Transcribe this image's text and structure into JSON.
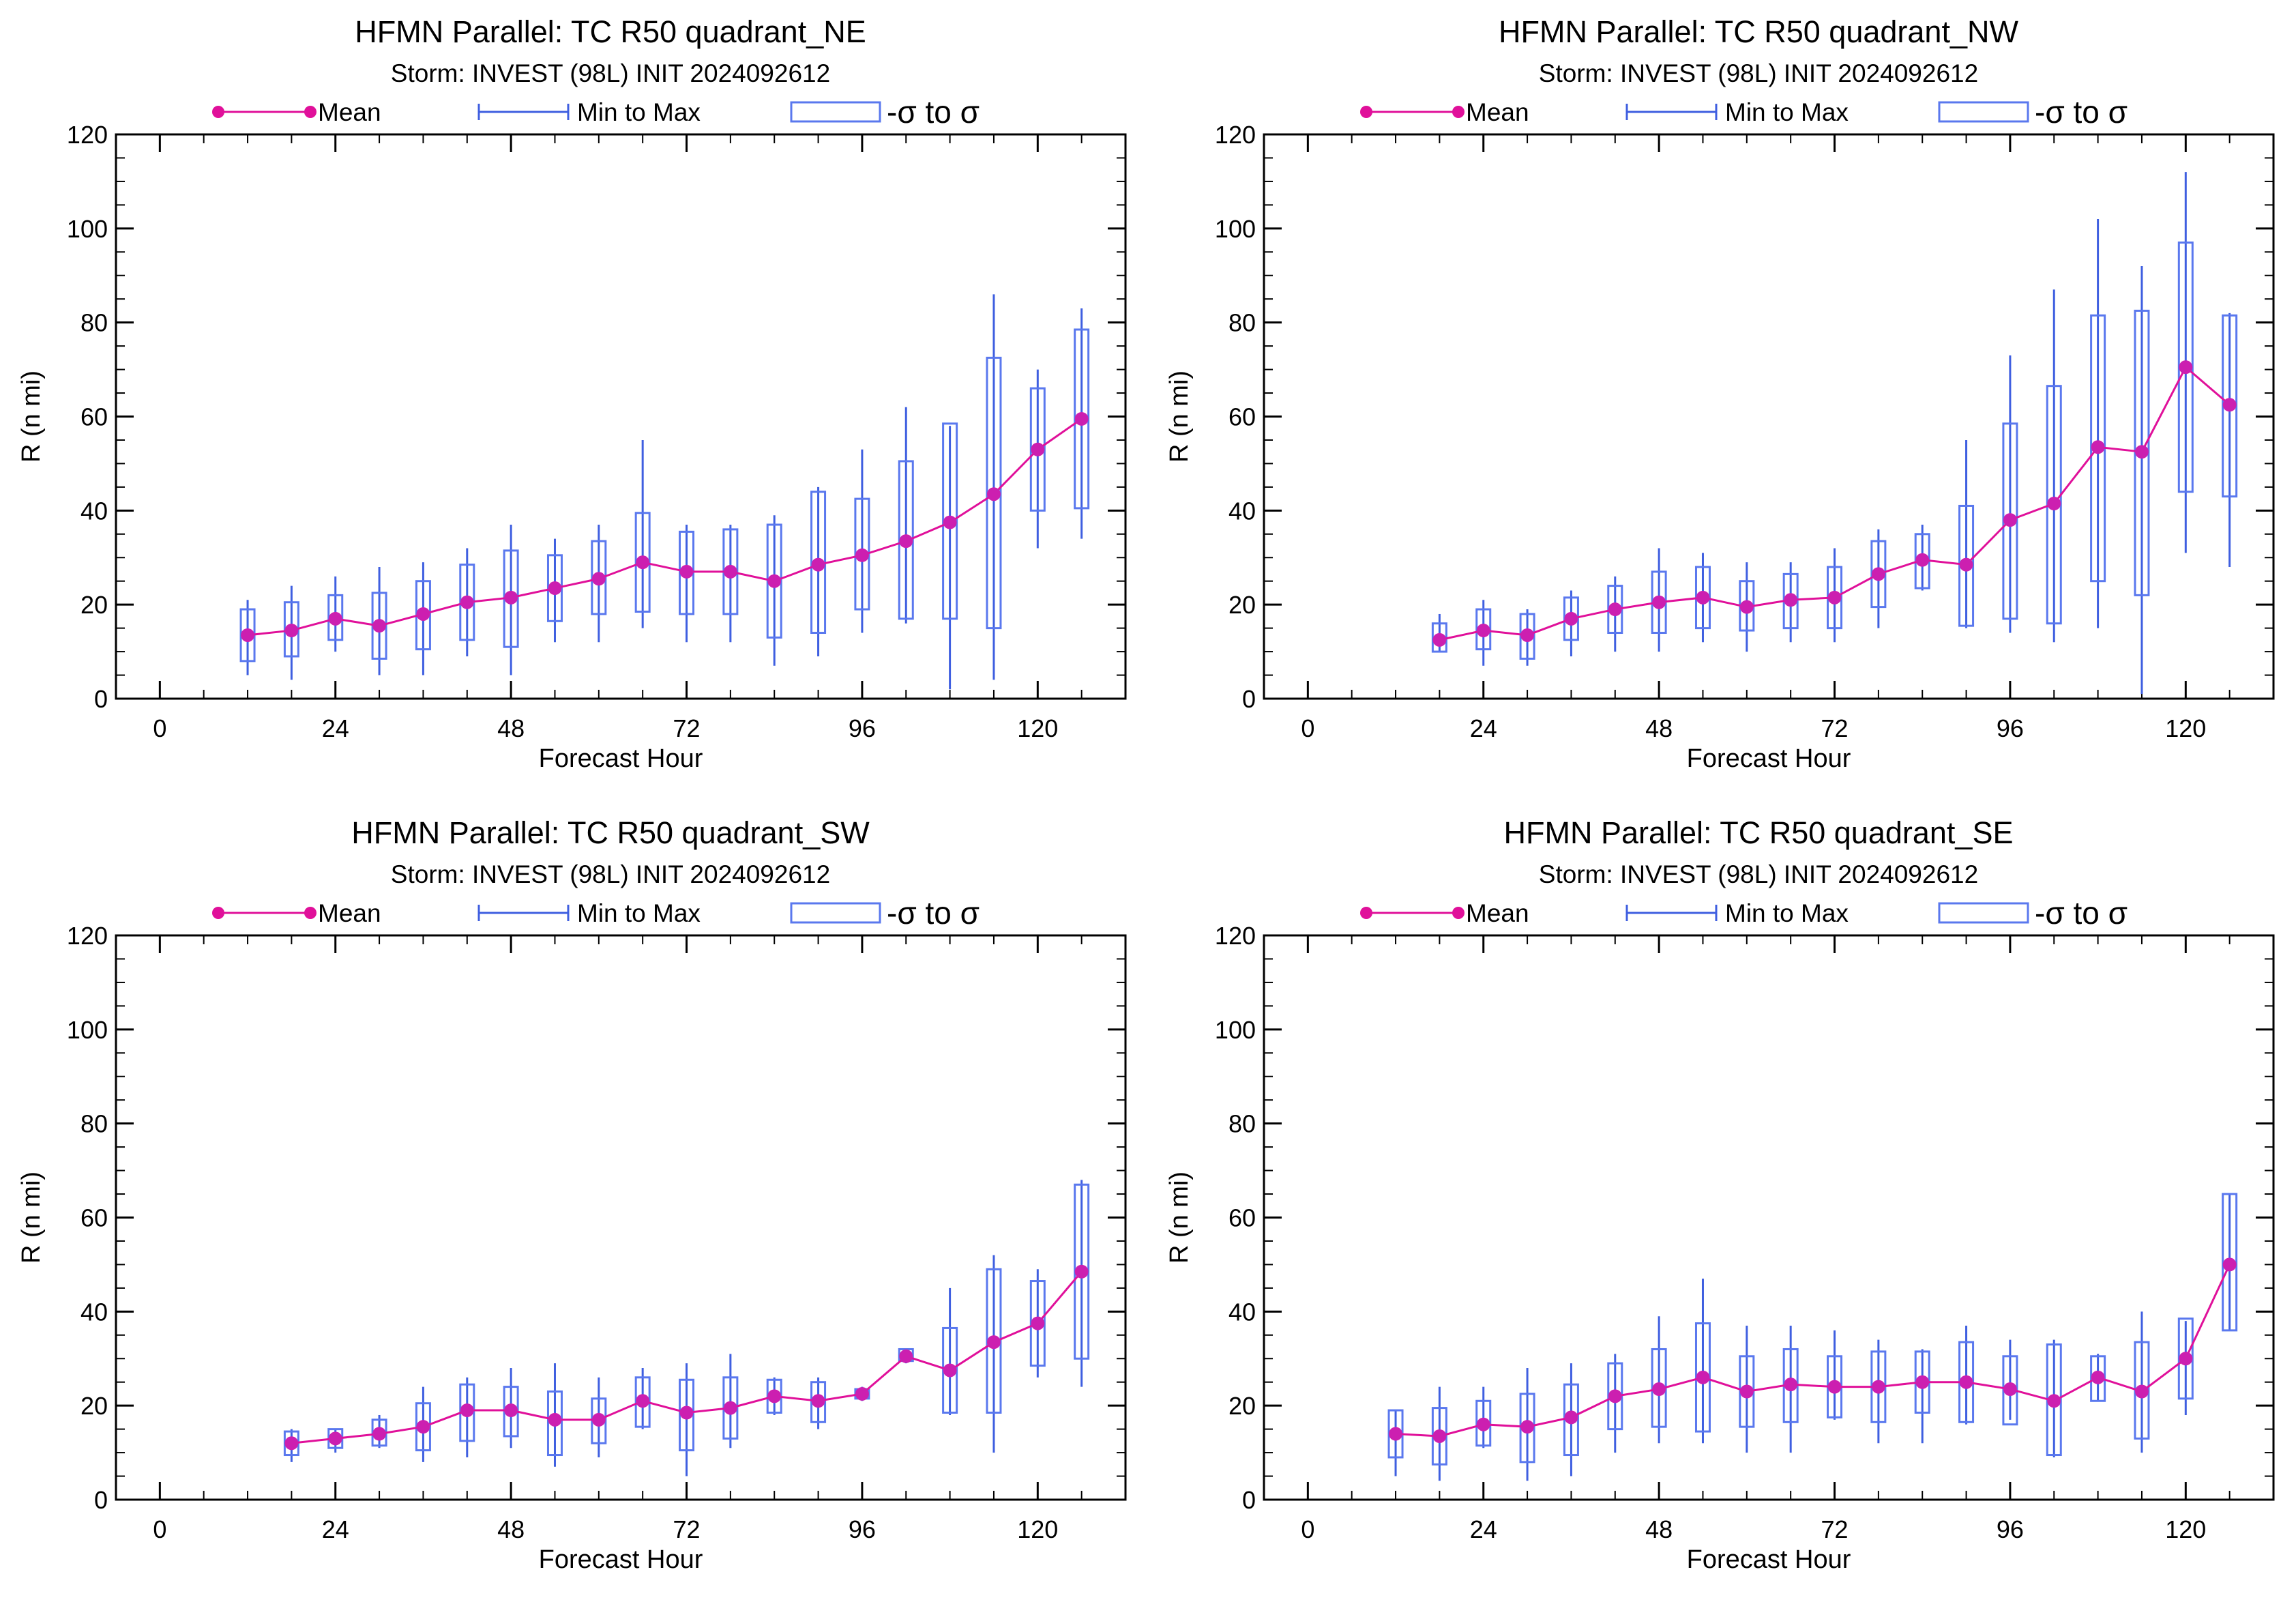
{
  "colors": {
    "mean": "#e0109a",
    "mean_marker": "#cc1fb0",
    "range": "#3f5fe0",
    "box": "#5a78ee",
    "axis": "#000000"
  },
  "legend": {
    "mean": "Mean",
    "range": "Min to Max",
    "sigma": "-σ to σ"
  },
  "chart_data": [
    {
      "type": "box",
      "title": "HFMN Parallel: TC  R50 quadrant_NE",
      "subtitle": "Storm: INVEST (98L) INIT 2024092612",
      "xlabel": "Forecast Hour",
      "ylabel": "R (n mi)",
      "xlim": [
        -6,
        132
      ],
      "ylim": [
        0,
        120
      ],
      "xticks": [
        0,
        24,
        48,
        72,
        96,
        120
      ],
      "yticks": [
        0,
        20,
        40,
        60,
        80,
        100,
        120
      ],
      "x": [
        12,
        18,
        24,
        30,
        36,
        42,
        48,
        54,
        60,
        66,
        72,
        78,
        84,
        90,
        96,
        102,
        108,
        114,
        120,
        126
      ],
      "mean": [
        13.5,
        14.5,
        17,
        15.5,
        18,
        20.5,
        21.5,
        23.5,
        25.5,
        29,
        27,
        27,
        25,
        28.5,
        30.5,
        33.5,
        37.5,
        43.5,
        53,
        59.5
      ],
      "min": [
        5,
        4,
        10,
        5,
        5,
        9,
        5,
        12,
        12,
        15,
        12,
        12,
        7,
        9,
        14,
        16,
        2,
        4,
        32,
        34
      ],
      "max": [
        21,
        24,
        26,
        28,
        29,
        32,
        37,
        34,
        37,
        55,
        37,
        37,
        39,
        45,
        53,
        62,
        58,
        86,
        70,
        83
      ],
      "sigma_low": [
        8,
        9,
        12.5,
        8.5,
        10.5,
        12.5,
        11,
        16.5,
        18,
        18.5,
        18,
        18,
        13,
        14,
        19,
        17,
        17,
        15,
        40,
        40.5
      ],
      "sigma_high": [
        19,
        20.5,
        22,
        22.5,
        25,
        28.5,
        31.5,
        30.5,
        33.5,
        39.5,
        35.5,
        36,
        37,
        44,
        42.5,
        50.5,
        58.5,
        72.5,
        66,
        78.5
      ]
    },
    {
      "type": "box",
      "title": "HFMN Parallel: TC  R50 quadrant_NW",
      "subtitle": "Storm: INVEST (98L) INIT 2024092612",
      "xlabel": "Forecast Hour",
      "ylabel": "R (n mi)",
      "xlim": [
        -6,
        132
      ],
      "ylim": [
        0,
        120
      ],
      "xticks": [
        0,
        24,
        48,
        72,
        96,
        120
      ],
      "yticks": [
        0,
        20,
        40,
        60,
        80,
        100,
        120
      ],
      "x": [
        18,
        24,
        30,
        36,
        42,
        48,
        54,
        60,
        66,
        72,
        78,
        84,
        90,
        96,
        102,
        108,
        114,
        120,
        126
      ],
      "mean": [
        12.5,
        14.5,
        13.5,
        17,
        19,
        20.5,
        21.5,
        19.5,
        21,
        21.5,
        26.5,
        29.5,
        28.5,
        38,
        41.5,
        53.5,
        52.5,
        70.5,
        62.5
      ],
      "min": [
        10,
        7,
        7,
        9,
        10,
        10,
        12,
        10,
        12,
        12,
        15,
        23,
        15,
        14,
        12,
        15,
        1,
        31,
        28
      ],
      "max": [
        18,
        21,
        19,
        23,
        26,
        32,
        31,
        29,
        29,
        32,
        36,
        37,
        55,
        73,
        87,
        102,
        92,
        112,
        82
      ],
      "sigma_low": [
        10,
        10.5,
        8.5,
        12.5,
        14,
        14,
        15,
        14.5,
        15,
        15,
        19.5,
        23.5,
        15.5,
        17,
        16,
        25,
        22,
        44,
        43
      ],
      "sigma_high": [
        16,
        19,
        18,
        21.5,
        24,
        27,
        28,
        25,
        26.5,
        28,
        33.5,
        35,
        41,
        58.5,
        66.5,
        81.5,
        82.5,
        97,
        81.5
      ]
    },
    {
      "type": "box",
      "title": "HFMN Parallel: TC  R50 quadrant_SW",
      "subtitle": "Storm: INVEST (98L) INIT 2024092612",
      "xlabel": "Forecast Hour",
      "ylabel": "R (n mi)",
      "xlim": [
        -6,
        132
      ],
      "ylim": [
        0,
        120
      ],
      "xticks": [
        0,
        24,
        48,
        72,
        96,
        120
      ],
      "yticks": [
        0,
        20,
        40,
        60,
        80,
        100,
        120
      ],
      "x": [
        18,
        24,
        30,
        36,
        42,
        48,
        54,
        60,
        66,
        72,
        78,
        84,
        90,
        96,
        102,
        108,
        114,
        120,
        126
      ],
      "mean": [
        12,
        13,
        14,
        15.5,
        19,
        19,
        17,
        17,
        21,
        18.5,
        19.5,
        22,
        21,
        22.5,
        30.5,
        27.5,
        33.5,
        37.5,
        48.5
      ],
      "min": [
        8,
        10,
        11,
        8,
        9,
        11,
        7,
        9,
        15,
        5,
        11,
        18,
        15,
        21,
        29,
        18,
        10,
        26,
        24
      ],
      "max": [
        15,
        15,
        18,
        24,
        26,
        28,
        29,
        26,
        28,
        29,
        31,
        26,
        26,
        24,
        32,
        45,
        52,
        49,
        68
      ],
      "sigma_low": [
        9.5,
        11,
        11.5,
        10.5,
        12.5,
        13.5,
        9.5,
        12,
        15.5,
        10.5,
        13,
        18.5,
        16.5,
        21.5,
        29.5,
        18.5,
        18.5,
        28.5,
        30
      ],
      "sigma_high": [
        14.5,
        15,
        17,
        20.5,
        24.5,
        24,
        23,
        21.5,
        26,
        25.5,
        26,
        25.5,
        25,
        23.5,
        32,
        36.5,
        49,
        46.5,
        67
      ]
    },
    {
      "type": "box",
      "title": "HFMN Parallel: TC  R50 quadrant_SE",
      "subtitle": "Storm: INVEST (98L) INIT 2024092612",
      "xlabel": "Forecast Hour",
      "ylabel": "R (n mi)",
      "xlim": [
        -6,
        132
      ],
      "ylim": [
        0,
        120
      ],
      "xticks": [
        0,
        24,
        48,
        72,
        96,
        120
      ],
      "yticks": [
        0,
        20,
        40,
        60,
        80,
        100,
        120
      ],
      "x": [
        12,
        18,
        24,
        30,
        36,
        42,
        48,
        54,
        60,
        66,
        72,
        78,
        84,
        90,
        96,
        102,
        108,
        114,
        120,
        126
      ],
      "mean": [
        14,
        13.5,
        16,
        15.5,
        17.5,
        22,
        23.5,
        26,
        23,
        24.5,
        24,
        24,
        25,
        25,
        23.5,
        21,
        26,
        23,
        30,
        50
      ],
      "min": [
        5,
        4,
        11,
        4,
        5,
        10,
        12,
        12,
        10,
        10,
        17,
        12,
        12,
        16,
        17,
        9,
        21,
        10,
        18,
        36
      ],
      "max": [
        19,
        24,
        24,
        28,
        29,
        31,
        39,
        47,
        37,
        37,
        36,
        34,
        32,
        37,
        34,
        34,
        31,
        40,
        38,
        65
      ],
      "sigma_low": [
        9,
        7.5,
        11.5,
        8,
        9.5,
        15,
        15.5,
        14.5,
        15.5,
        16.5,
        17.5,
        16.5,
        18.5,
        16.5,
        16,
        9.5,
        21,
        13,
        21.5,
        36
      ],
      "sigma_high": [
        19,
        19.5,
        21,
        22.5,
        24.5,
        29,
        32,
        37.5,
        30.5,
        32,
        30.5,
        31.5,
        31.5,
        33.5,
        30.5,
        33,
        30.5,
        33.5,
        38.5,
        65
      ]
    }
  ]
}
